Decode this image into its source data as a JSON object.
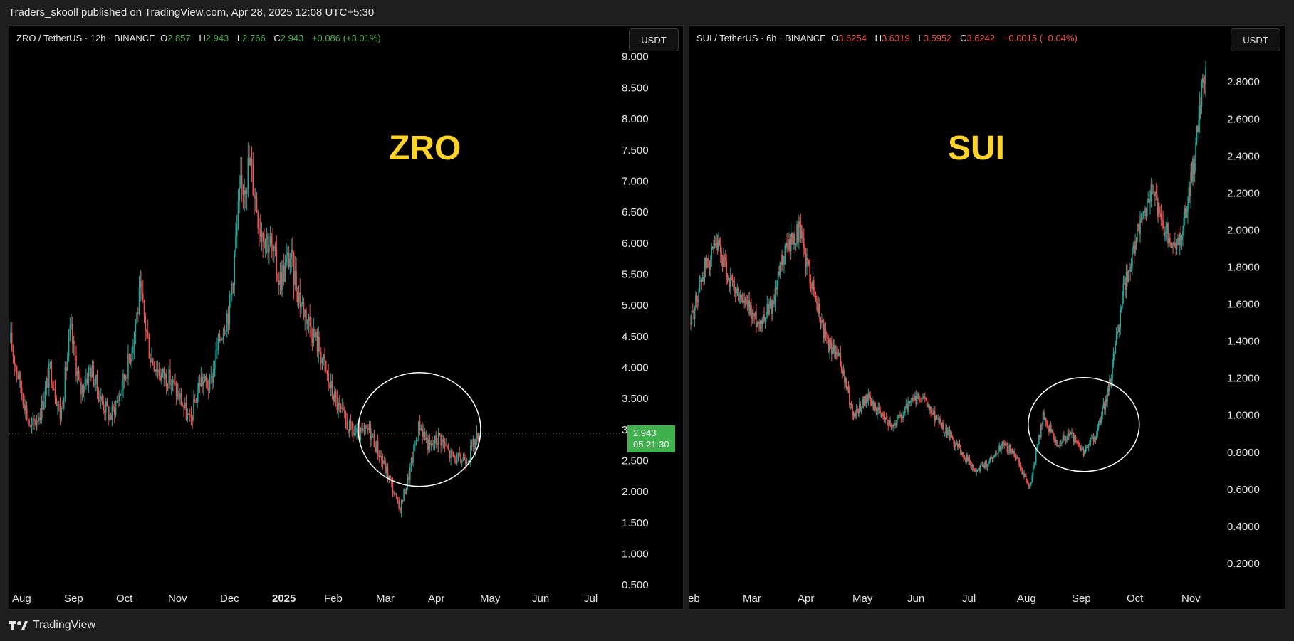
{
  "header": {
    "published": "Traders_skooll published on TradingView.com, Apr 28, 2025 12:08 UTC+5:30"
  },
  "footer": {
    "brand": "TradingView"
  },
  "colors": {
    "up": "#26a69a",
    "down": "#ef5350",
    "label": "#ffd42a",
    "tag": "#3fb24d"
  },
  "chart_data": [
    {
      "type": "candlestick",
      "legend": {
        "symbol": "ZRO / TetherUS · 12h · BINANCE",
        "o_label": "O",
        "o": "2.857",
        "h_label": "H",
        "h": "2.943",
        "l_label": "L",
        "l": "2.766",
        "c_label": "C",
        "c": "2.943",
        "change": "+0.086 (+3.01%)"
      },
      "currency_button": "USDT",
      "annotation": "ZRO",
      "last_price": "2.943",
      "countdown": "05:21:30",
      "y_ticks": [
        "9.000",
        "8.500",
        "8.000",
        "7.500",
        "7.000",
        "6.500",
        "6.000",
        "5.500",
        "5.000",
        "4.500",
        "4.000",
        "3.500",
        "3.000",
        "2.500",
        "2.000",
        "1.500",
        "1.000",
        "0.500"
      ],
      "ylim": [
        0.25,
        9.1
      ],
      "x_ticks": [
        "Aug",
        "Sep",
        "Oct",
        "Nov",
        "Dec",
        "2025",
        "Feb",
        "Mar",
        "Apr",
        "May",
        "Jun",
        "Jul"
      ],
      "price_path": [
        [
          0,
          4.4
        ],
        [
          1,
          3.0
        ],
        [
          1.5,
          3.3
        ],
        [
          2,
          4.0
        ],
        [
          2.5,
          3.2
        ],
        [
          3,
          4.6
        ],
        [
          3.5,
          3.6
        ],
        [
          4,
          4.0
        ],
        [
          4.5,
          3.5
        ],
        [
          5,
          3.2
        ],
        [
          5.5,
          3.6
        ],
        [
          6,
          4.2
        ],
        [
          6.5,
          5.2
        ],
        [
          7,
          4.2
        ],
        [
          7.5,
          3.9
        ],
        [
          8,
          3.8
        ],
        [
          8.5,
          3.5
        ],
        [
          9,
          3.1
        ],
        [
          9.5,
          3.8
        ],
        [
          10,
          3.7
        ],
        [
          10.5,
          4.5
        ],
        [
          11,
          5.0
        ],
        [
          11.5,
          6.8
        ],
        [
          12,
          7.3
        ],
        [
          12.5,
          6.3
        ],
        [
          13,
          6.0
        ],
        [
          13.5,
          5.4
        ],
        [
          14,
          5.8
        ],
        [
          14.5,
          5.1
        ],
        [
          15,
          4.7
        ],
        [
          15.5,
          4.3
        ],
        [
          16,
          3.7
        ],
        [
          16.5,
          3.3
        ],
        [
          17,
          3.0
        ],
        [
          17.5,
          2.9
        ],
        [
          18,
          3.0
        ],
        [
          18.5,
          2.6
        ],
        [
          19,
          2.2
        ],
        [
          19.5,
          1.7
        ],
        [
          20,
          2.3
        ],
        [
          20.5,
          3.1
        ],
        [
          21,
          2.7
        ],
        [
          21.5,
          2.9
        ],
        [
          22,
          2.6
        ],
        [
          22.5,
          2.5
        ],
        [
          23,
          2.6
        ],
        [
          23.5,
          2.95
        ]
      ],
      "circle_center": [
        20.5,
        3.0
      ]
    },
    {
      "type": "candlestick",
      "legend": {
        "symbol": "SUI / TetherUS · 6h · BINANCE",
        "o_label": "O",
        "o": "3.6254",
        "h_label": "H",
        "h": "3.6319",
        "l_label": "L",
        "l": "3.5952",
        "c_label": "C",
        "c": "3.6242",
        "change": "−0.0015 (−0.04%)"
      },
      "currency_button": "USDT",
      "annotation": "SUI",
      "y_ticks": [
        "2.8000",
        "2.6000",
        "2.4000",
        "2.2000",
        "2.0000",
        "1.8000",
        "1.6000",
        "1.4000",
        "1.2000",
        "1.0000",
        "0.8000",
        "0.6000",
        "0.4000",
        "0.2000"
      ],
      "ylim": [
        0.0,
        2.97
      ],
      "x_ticks": [
        "eb",
        "Mar",
        "Apr",
        "May",
        "Jun",
        "Jul",
        "Aug",
        "Sep",
        "Oct",
        "Nov"
      ],
      "price_path": [
        [
          0,
          1.5
        ],
        [
          0.5,
          1.8
        ],
        [
          1,
          1.9
        ],
        [
          1.5,
          1.7
        ],
        [
          2,
          1.6
        ],
        [
          2.5,
          1.5
        ],
        [
          3,
          1.6
        ],
        [
          3.5,
          1.9
        ],
        [
          4,
          2.0
        ],
        [
          4.5,
          1.7
        ],
        [
          5,
          1.4
        ],
        [
          5.5,
          1.3
        ],
        [
          6,
          1.0
        ],
        [
          6.5,
          1.1
        ],
        [
          7,
          1.0
        ],
        [
          7.5,
          0.95
        ],
        [
          8,
          1.05
        ],
        [
          8.5,
          1.1
        ],
        [
          9,
          1.0
        ],
        [
          9.5,
          0.9
        ],
        [
          10,
          0.8
        ],
        [
          10.5,
          0.7
        ],
        [
          11,
          0.75
        ],
        [
          11.5,
          0.85
        ],
        [
          12,
          0.78
        ],
        [
          12.5,
          0.6
        ],
        [
          13,
          1.0
        ],
        [
          13.5,
          0.85
        ],
        [
          14,
          0.9
        ],
        [
          14.5,
          0.8
        ],
        [
          15,
          0.9
        ],
        [
          15.5,
          1.2
        ],
        [
          16,
          1.7
        ],
        [
          16.5,
          2.0
        ],
        [
          17,
          2.2
        ],
        [
          17.5,
          2.0
        ],
        [
          18,
          1.9
        ],
        [
          18.5,
          2.3
        ],
        [
          19,
          2.9
        ]
      ],
      "circle_center": [
        14.5,
        0.95
      ]
    }
  ]
}
